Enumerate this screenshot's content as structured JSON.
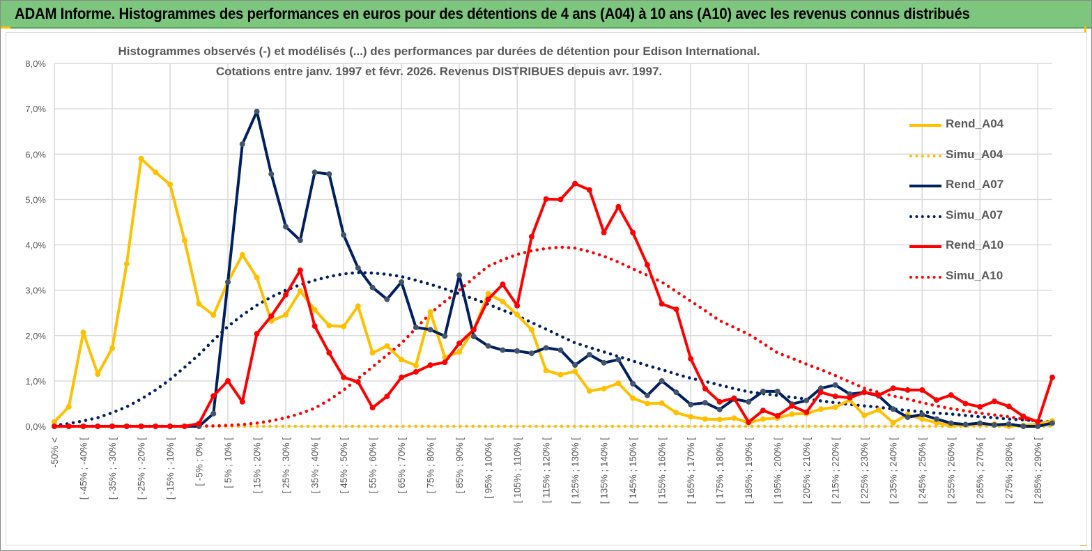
{
  "header": {
    "title": "ADAM Informe. Histogrammes des performances en euros pour des détentions de 4 ans (A04) à 10 ans (A10) avec les revenus connus distribués"
  },
  "colors": {
    "yellow": "#FFC000",
    "navy": "#002060",
    "red": "#FF0000",
    "navy_marker": "#44546A",
    "titlebar": "#7DC67E"
  },
  "chart_data": {
    "type": "line",
    "title": "Histogrammes observés (-) et modélisés (...) des performances par durées de détention pour Edison International.",
    "subtitle": "Cotations entre janv. 1997 et févr. 2026. Revenus DISTRIBUES depuis avr. 1997.",
    "xlabel": "",
    "ylabel": "",
    "ylim": [
      0,
      8
    ],
    "y_ticks": [
      "0,0%",
      "1,0%",
      "2,0%",
      "3,0%",
      "4,0%",
      "5,0%",
      "6,0%",
      "7,0%",
      "8,0%"
    ],
    "n_points": 70,
    "tick_labels": [
      "-50% <",
      "[ -45% ; -40% [",
      "[ -35% ; -30% [",
      "[ -25% ; -20% [",
      "[ -15% ; -10% [",
      "[ -5% ; 0% [",
      "[ 5% ; 10% [",
      "[ 15% ; 20% [",
      "[ 25% ; 30% [",
      "[ 35% ; 40% [",
      "[ 45% ; 50% [",
      "[ 55% ; 60% [",
      "[ 65% ; 70% [",
      "[ 75% ; 80% [",
      "[ 85% ; 90% [",
      "[ 95% ; 100% [",
      "[ 105% ; 110% [",
      "[ 115% ; 120% [",
      "[ 125% ; 130% [",
      "[ 135% ; 140% [",
      "[ 145% ; 150% [",
      "[ 155% ; 160% [",
      "[ 165% ; 170% [",
      "[ 175% ; 180% [",
      "[ 185% ; 190% [",
      "[ 195% ; 200% [",
      "[ 205% ; 210% [",
      "[ 215% ; 220% [",
      "[ 225% ; 230% [",
      "[ 235% ; 240% [",
      "[ 245% ; 250% [",
      "[ 255% ; 260% [",
      "[ 265% ; 270% [",
      "[ 275% ; 280% [",
      "[ 285% ; 290% ["
    ],
    "grid": true,
    "legend_position": "right",
    "series": [
      {
        "name": "Rend_A04",
        "style": "solid",
        "color": "#FFC000",
        "values": [
          0.1,
          0.43,
          2.07,
          1.15,
          1.72,
          3.58,
          5.9,
          5.6,
          5.33,
          4.1,
          2.7,
          2.45,
          3.18,
          3.78,
          3.28,
          2.32,
          2.46,
          2.98,
          2.57,
          2.22,
          2.2,
          2.65,
          1.62,
          1.77,
          1.47,
          1.34,
          2.52,
          1.52,
          1.64,
          2.13,
          2.92,
          2.75,
          2.46,
          2.13,
          1.23,
          1.14,
          1.21,
          0.78,
          0.83,
          0.95,
          0.62,
          0.5,
          0.51,
          0.3,
          0.21,
          0.16,
          0.15,
          0.18,
          0.08,
          0.16,
          0.18,
          0.27,
          0.28,
          0.38,
          0.42,
          0.58,
          0.24,
          0.36,
          0.08,
          0.26,
          0.16,
          0.08,
          0.02,
          0.03,
          0.05,
          0.05,
          0.0,
          0.02,
          0.05,
          0.12
        ]
      },
      {
        "name": "Simu_A04",
        "style": "dotted",
        "color": "#FFC000",
        "values": [
          0,
          0,
          0,
          0,
          0,
          0,
          0,
          0,
          0,
          0,
          0,
          0,
          0,
          0,
          0,
          0,
          0,
          0,
          0,
          0,
          0,
          0,
          0,
          0,
          0,
          0,
          0,
          0,
          0,
          0,
          0,
          0,
          0,
          0,
          0,
          0,
          0,
          0,
          0,
          0,
          0,
          0,
          0,
          0,
          0,
          0,
          0,
          0,
          0,
          0,
          0,
          0,
          0,
          0,
          0,
          0,
          0,
          0,
          0,
          0,
          0,
          0,
          0,
          0,
          0,
          0,
          0,
          0,
          0,
          0
        ]
      },
      {
        "name": "Rend_A07",
        "style": "solid",
        "color": "#002060",
        "values": [
          0,
          0,
          0,
          0,
          0,
          0,
          0,
          0,
          0,
          0,
          0,
          0.28,
          3.18,
          6.22,
          6.94,
          5.56,
          4.4,
          4.1,
          5.6,
          5.56,
          4.22,
          3.49,
          3.06,
          2.8,
          3.18,
          2.18,
          2.13,
          1.99,
          3.33,
          1.98,
          1.77,
          1.68,
          1.66,
          1.61,
          1.73,
          1.68,
          1.35,
          1.58,
          1.4,
          1.47,
          0.94,
          0.68,
          1.0,
          0.75,
          0.48,
          0.52,
          0.37,
          0.6,
          0.54,
          0.77,
          0.77,
          0.49,
          0.57,
          0.84,
          0.91,
          0.71,
          0.75,
          0.67,
          0.38,
          0.2,
          0.26,
          0.16,
          0.07,
          0.04,
          0.07,
          0.03,
          0.05,
          0.0,
          0.0,
          0.07
        ]
      },
      {
        "name": "Simu_A07",
        "style": "dotted",
        "color": "#002060",
        "values": [
          0.02,
          0.06,
          0.12,
          0.19,
          0.3,
          0.43,
          0.6,
          0.8,
          1.03,
          1.3,
          1.58,
          1.9,
          2.2,
          2.45,
          2.67,
          2.85,
          3.0,
          3.12,
          3.22,
          3.3,
          3.36,
          3.39,
          3.38,
          3.35,
          3.3,
          3.22,
          3.13,
          3.03,
          2.92,
          2.81,
          2.69,
          2.56,
          2.44,
          2.29,
          2.14,
          1.99,
          1.84,
          1.74,
          1.64,
          1.54,
          1.44,
          1.34,
          1.25,
          1.15,
          1.06,
          0.99,
          0.91,
          0.83,
          0.76,
          0.72,
          0.68,
          0.64,
          0.6,
          0.56,
          0.52,
          0.48,
          0.45,
          0.42,
          0.38,
          0.35,
          0.32,
          0.29,
          0.27,
          0.24,
          0.21,
          0.19,
          0.16,
          0.14,
          0.12,
          0.1
        ]
      },
      {
        "name": "Rend_A10",
        "style": "solid",
        "color": "#FF0000",
        "values": [
          0,
          0,
          0,
          0,
          0,
          0,
          0,
          0,
          0,
          0,
          0.06,
          0.67,
          1.0,
          0.54,
          2.04,
          2.43,
          2.9,
          3.44,
          2.21,
          1.62,
          1.08,
          0.98,
          0.41,
          0.66,
          1.08,
          1.2,
          1.35,
          1.41,
          1.83,
          2.13,
          2.8,
          3.13,
          2.66,
          4.18,
          5.01,
          5.0,
          5.35,
          5.21,
          4.27,
          4.84,
          4.27,
          3.56,
          2.7,
          2.58,
          1.49,
          0.83,
          0.54,
          0.62,
          0.09,
          0.35,
          0.23,
          0.45,
          0.31,
          0.75,
          0.66,
          0.63,
          0.75,
          0.69,
          0.84,
          0.8,
          0.8,
          0.58,
          0.69,
          0.5,
          0.43,
          0.55,
          0.44,
          0.22,
          0.1,
          1.08
        ]
      },
      {
        "name": "Simu_A10",
        "style": "dotted",
        "color": "#FF0000",
        "values": [
          0,
          0,
          0,
          0,
          0,
          0,
          0,
          0,
          0,
          0,
          0.005,
          0.01,
          0.02,
          0.04,
          0.07,
          0.12,
          0.19,
          0.28,
          0.4,
          0.58,
          0.8,
          1.05,
          1.31,
          1.57,
          1.83,
          2.16,
          2.49,
          2.75,
          3.0,
          3.27,
          3.53,
          3.67,
          3.79,
          3.87,
          3.92,
          3.95,
          3.93,
          3.85,
          3.75,
          3.62,
          3.47,
          3.33,
          3.18,
          2.97,
          2.76,
          2.55,
          2.33,
          2.18,
          2.03,
          1.83,
          1.62,
          1.5,
          1.37,
          1.25,
          1.12,
          0.98,
          0.84,
          0.75,
          0.67,
          0.6,
          0.52,
          0.45,
          0.39,
          0.34,
          0.29,
          0.25,
          0.21,
          0.16,
          0.11,
          0.06
        ]
      }
    ]
  }
}
